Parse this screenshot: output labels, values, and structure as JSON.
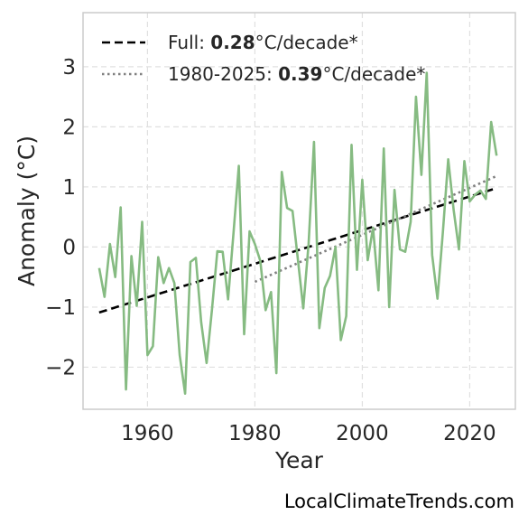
{
  "credit": "LocalClimateTrends.com",
  "chart_data": {
    "type": "line",
    "title": "",
    "xlabel": "Year",
    "ylabel": "Anomaly (°C)",
    "xlim": [
      1948,
      2028.5
    ],
    "ylim": [
      -2.7,
      3.9
    ],
    "xticks": [
      1960,
      1980,
      2000,
      2020
    ],
    "yticks": [
      -2,
      -1,
      0,
      1,
      2,
      3
    ],
    "ytick_labels": [
      "−2",
      "−1",
      "0",
      "1",
      "2",
      "3"
    ],
    "grid": true,
    "legend_position": "top-left",
    "colors": {
      "series": "#86bb82",
      "full_trend": "#000000",
      "recent_trend": "#808080"
    },
    "series": [
      {
        "x": [
          1951,
          1952,
          1953,
          1954,
          1955,
          1956,
          1957,
          1958,
          1959,
          1960,
          1961,
          1962,
          1963,
          1964,
          1965,
          1966,
          1967,
          1968,
          1969,
          1970,
          1971,
          1972,
          1973,
          1974,
          1975,
          1976,
          1977,
          1978,
          1979,
          1980,
          1981,
          1982,
          1983,
          1984,
          1985,
          1986,
          1987,
          1988,
          1989,
          1990,
          1991,
          1992,
          1993,
          1994,
          1995,
          1996,
          1997,
          1998,
          1999,
          2000,
          2001,
          2002,
          2003,
          2004,
          2005,
          2006,
          2007,
          2008,
          2009,
          2010,
          2011,
          2012,
          2013,
          2014,
          2015,
          2016,
          2017,
          2018,
          2019,
          2020,
          2021,
          2022,
          2023,
          2024,
          2025
        ],
        "y": [
          -0.35,
          -0.83,
          0.05,
          -0.5,
          0.66,
          -2.37,
          -0.15,
          -0.98,
          0.42,
          -1.8,
          -1.65,
          -0.17,
          -0.6,
          -0.35,
          -0.6,
          -1.8,
          -2.44,
          -0.25,
          -0.18,
          -1.25,
          -1.93,
          -1.05,
          -0.07,
          -0.08,
          -0.87,
          0.21,
          1.35,
          -1.45,
          0.26,
          0.05,
          -0.23,
          -1.05,
          -0.75,
          -2.1,
          1.25,
          0.65,
          0.6,
          -0.2,
          -1.02,
          0.05,
          1.75,
          -1.35,
          -0.68,
          -0.48,
          0.0,
          -1.55,
          -1.15,
          1.7,
          -0.38,
          1.12,
          -0.22,
          0.32,
          -0.72,
          1.64,
          -1.0,
          0.95,
          -0.04,
          -0.08,
          0.42,
          2.5,
          1.2,
          2.9,
          -0.13,
          -0.86,
          0.25,
          1.46,
          0.62,
          -0.04,
          1.43,
          0.76,
          0.87,
          0.94,
          0.8,
          2.08,
          1.52
        ]
      }
    ],
    "trends": [
      {
        "name": "Full",
        "rate": "0.28",
        "unit": "°C/decade*",
        "x": [
          1951,
          2025
        ],
        "y": [
          -1.09,
          0.98
        ],
        "style": "dashed"
      },
      {
        "name": "1980-2025",
        "rate": "0.39",
        "unit": "°C/decade*",
        "x": [
          1980,
          2025
        ],
        "y": [
          -0.58,
          1.18
        ],
        "style": "dotted"
      }
    ]
  }
}
